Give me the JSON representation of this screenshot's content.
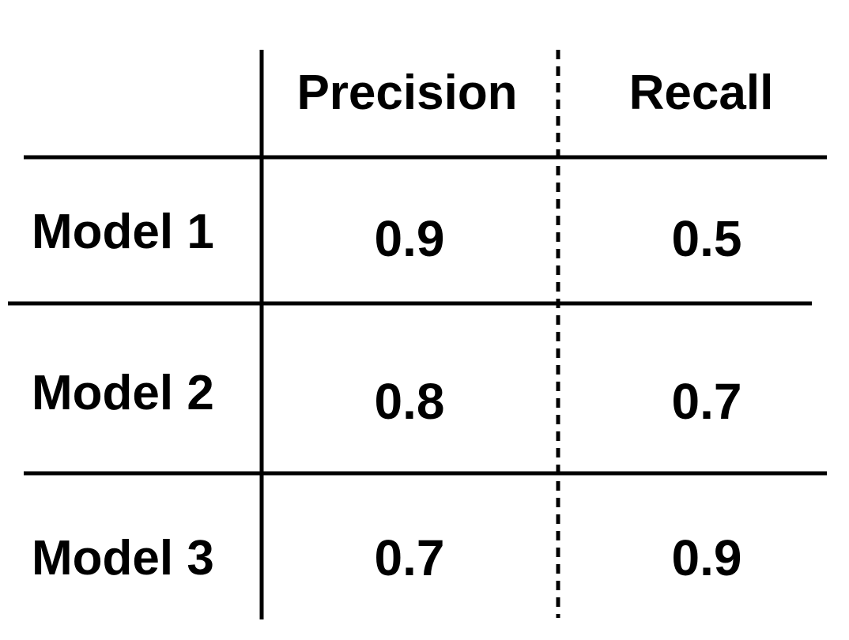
{
  "chart_data": {
    "type": "table",
    "columns": [
      "Precision",
      "Recall"
    ],
    "rows": [
      {
        "label": "Model 1",
        "values": [
          "0.9",
          "0.5"
        ]
      },
      {
        "label": "Model 2",
        "values": [
          "0.8",
          "0.7"
        ]
      },
      {
        "label": "Model 3",
        "values": [
          "0.7",
          "0.9"
        ]
      }
    ],
    "colors": {
      "text": "#000000",
      "lines": "#000000",
      "background": "#ffffff"
    },
    "column_divider_style": "dashed"
  }
}
